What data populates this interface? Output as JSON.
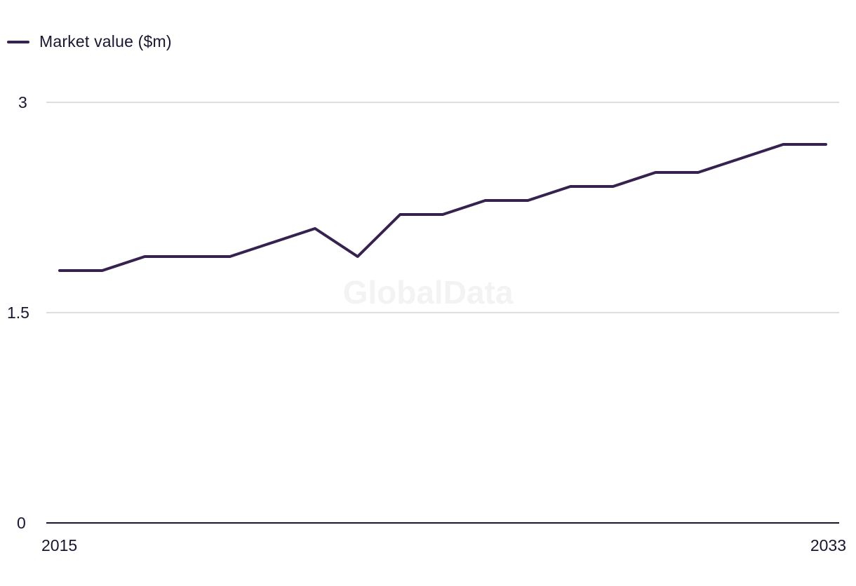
{
  "colors": {
    "series": "#35224f",
    "grid": "#d4d4d4",
    "axis": "#1b1530"
  },
  "legend": {
    "label": "Market value ($m)"
  },
  "watermark": "GlobalData",
  "chart_data": {
    "type": "line",
    "x": [
      2015,
      2016,
      2017,
      2018,
      2019,
      2020,
      2021,
      2022,
      2023,
      2024,
      2025,
      2026,
      2027,
      2028,
      2029,
      2030,
      2031,
      2032,
      2033
    ],
    "series": [
      {
        "name": "Market value ($m)",
        "values": [
          1.8,
          1.8,
          1.9,
          1.9,
          1.9,
          2.0,
          2.1,
          1.9,
          2.2,
          2.2,
          2.3,
          2.3,
          2.4,
          2.4,
          2.5,
          2.5,
          2.6,
          2.7,
          2.7
        ]
      }
    ],
    "ylim": [
      0,
      3
    ],
    "yticks": [
      "0",
      "1.5",
      "3"
    ],
    "xtick_labels": [
      "2015",
      "2033"
    ],
    "grid": true,
    "legend_position": "top-left"
  }
}
